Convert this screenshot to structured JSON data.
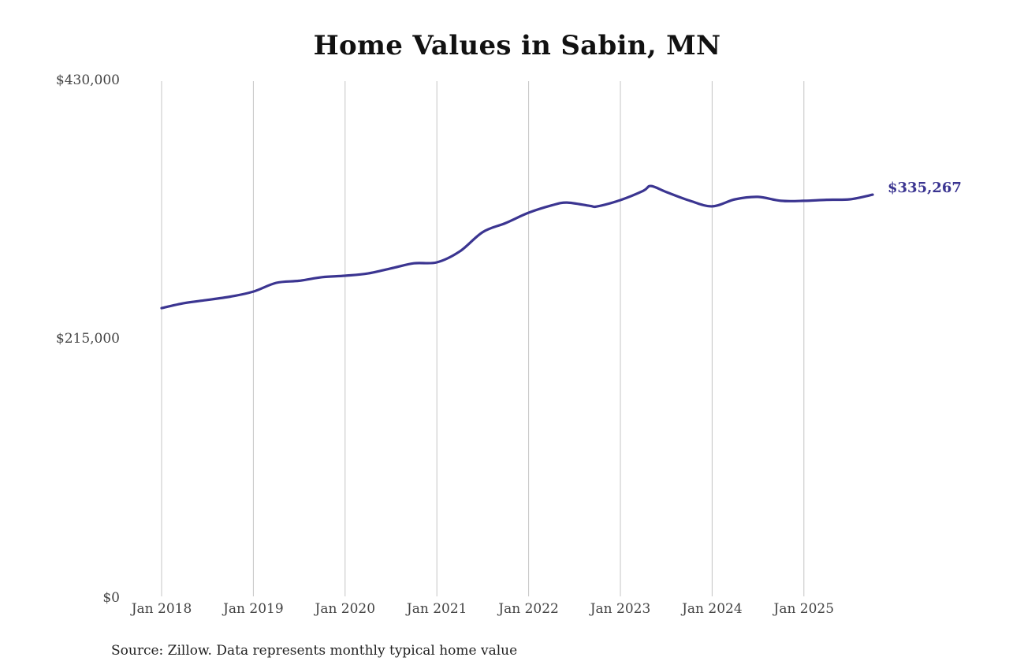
{
  "chart_data": {
    "type": "line",
    "title": "Home Values in Sabin, MN",
    "xlabel": "",
    "ylabel": "",
    "ylim": [
      0,
      430000
    ],
    "y_ticks": [
      "$430,000",
      "$215,000",
      "$0"
    ],
    "y_tick_values": [
      430000,
      215000,
      0
    ],
    "x_ticks": [
      "Jan 2018",
      "Jan 2019",
      "Jan 2020",
      "Jan 2021",
      "Jan 2022",
      "Jan 2023",
      "Jan 2024",
      "Jan 2025"
    ],
    "grid": {
      "vertical": true,
      "horizontal": false
    },
    "legend": null,
    "line_color": "#3b3591",
    "end_label": "$335,267",
    "series": [
      {
        "name": "Typical home value",
        "x": [
          "2018-01",
          "2018-04",
          "2018-07",
          "2018-10",
          "2019-01",
          "2019-04",
          "2019-07",
          "2019-10",
          "2020-01",
          "2020-04",
          "2020-07",
          "2020-10",
          "2021-01",
          "2021-04",
          "2021-07",
          "2021-10",
          "2022-01",
          "2022-04",
          "2022-06",
          "2022-09",
          "2022-10",
          "2023-01",
          "2023-04",
          "2023-05",
          "2023-07",
          "2023-10",
          "2024-01",
          "2024-04",
          "2024-07",
          "2024-10",
          "2025-01",
          "2025-04",
          "2025-07",
          "2025-10"
        ],
        "values": [
          240600,
          244800,
          247400,
          250200,
          254400,
          261700,
          263400,
          266400,
          267600,
          269500,
          273700,
          278000,
          278800,
          287900,
          304000,
          311600,
          320200,
          326300,
          328700,
          325900,
          325500,
          330700,
          338500,
          342500,
          337500,
          330400,
          325500,
          331400,
          333400,
          330100,
          330100,
          331000,
          331400,
          335267
        ]
      }
    ]
  },
  "source_note": "Source: Zillow. Data represents monthly typical home value"
}
